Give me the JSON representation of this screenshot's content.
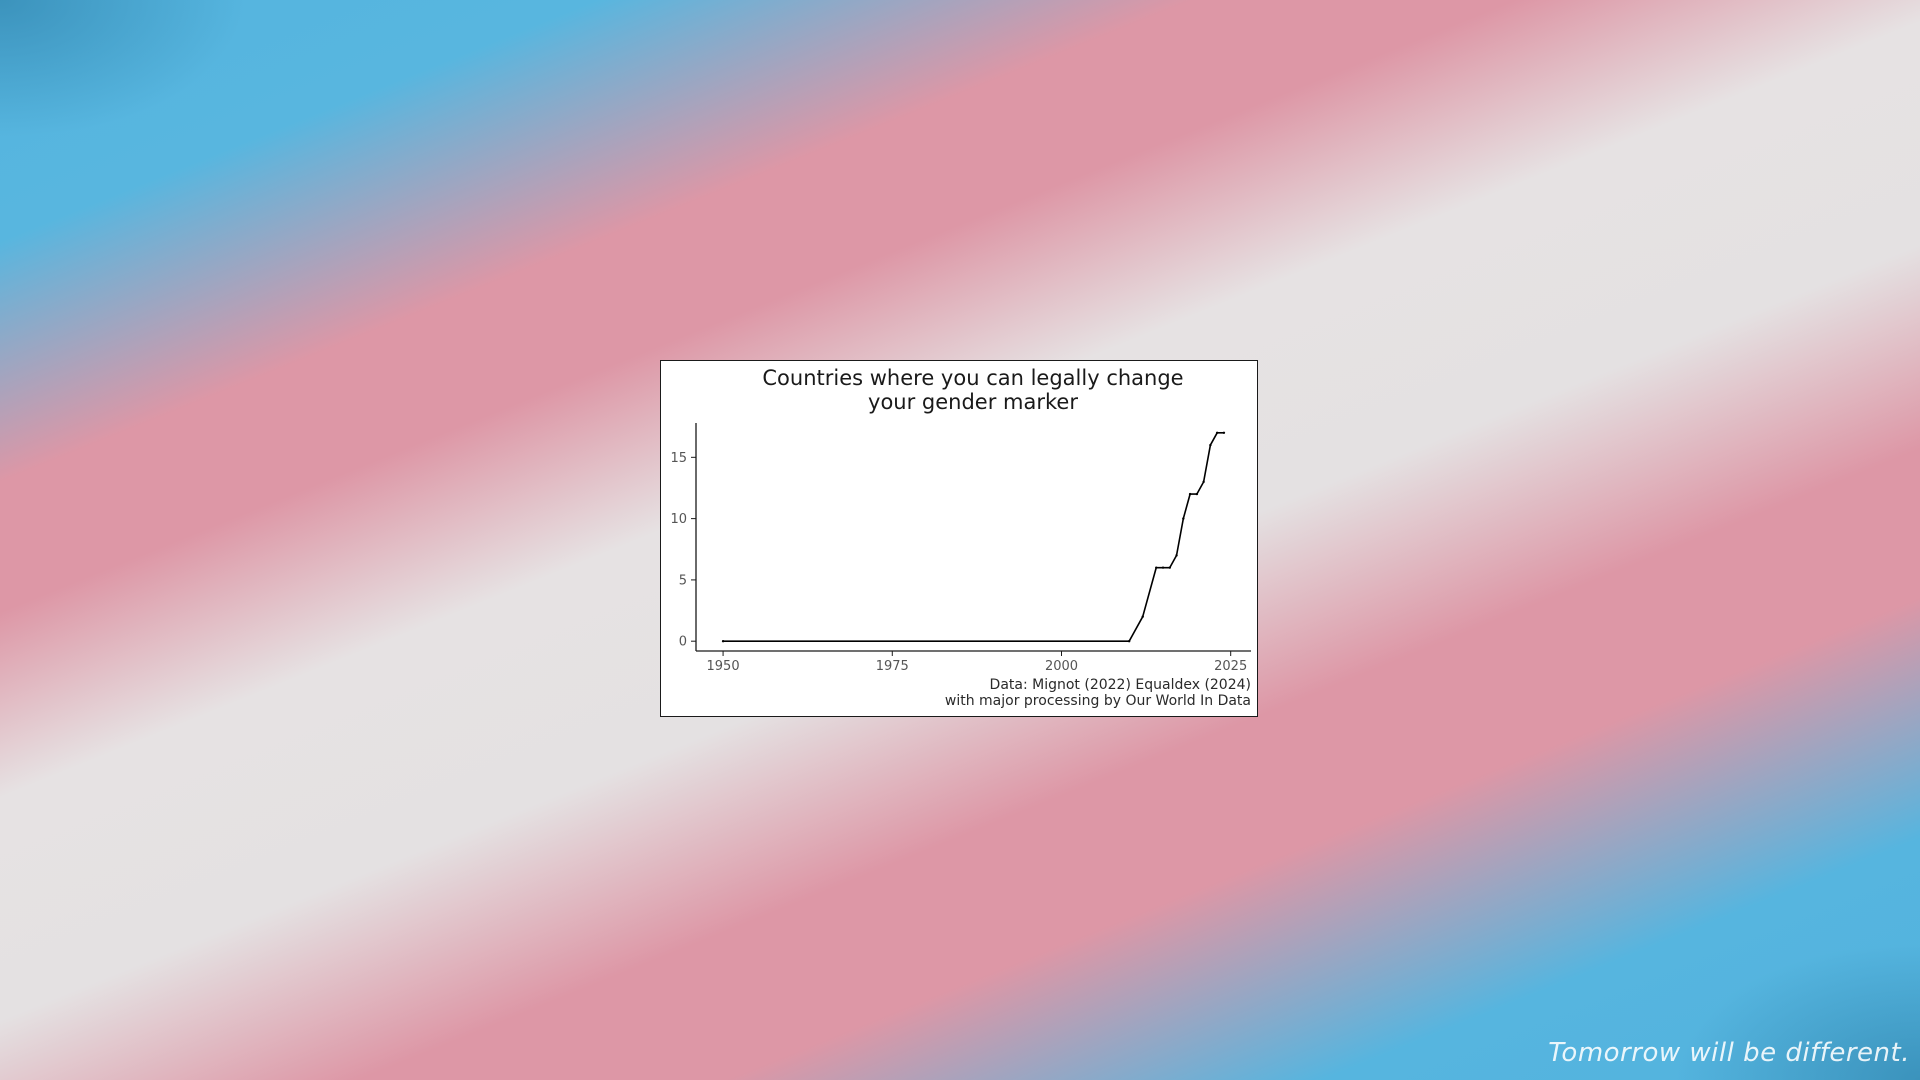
{
  "background": {
    "colors": [
      "#54b4df",
      "#dd97a6",
      "#e6e2e3"
    ]
  },
  "tagline": "Tomorrow will be different.",
  "chart_data": {
    "type": "line",
    "title_lines": [
      "Countries where you can legally change",
      "your gender marker"
    ],
    "xlabel": "",
    "ylabel": "",
    "xlim": [
      1946,
      2028
    ],
    "ylim": [
      -0.8,
      17.8
    ],
    "x_ticks": [
      1950,
      1975,
      2000,
      2025
    ],
    "y_ticks": [
      0,
      5,
      10,
      15
    ],
    "grid": false,
    "legend": "none",
    "line_color": "#000000",
    "x": [
      1950,
      2010,
      2012,
      2014,
      2015,
      2016,
      2017,
      2018,
      2019,
      2020,
      2021,
      2022,
      2023,
      2024
    ],
    "y": [
      0,
      0,
      2,
      6,
      6,
      6,
      7,
      10,
      12,
      12,
      13,
      16,
      17,
      17
    ],
    "caption_lines": [
      "Data:  Mignot (2022) Equaldex (2024)",
      "with major processing by Our World In Data"
    ]
  }
}
